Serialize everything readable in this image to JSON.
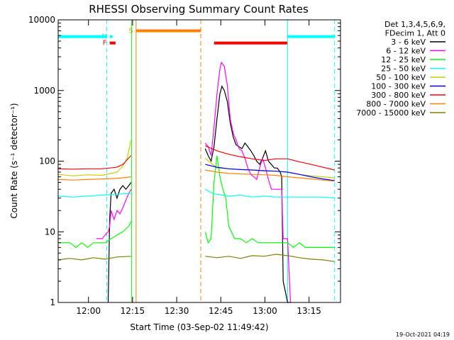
{
  "chart_data": {
    "type": "line",
    "title": "RHESSI Observing Summary Count Rates",
    "xlabel": "Start Time (03-Sep-02 11:49:42)",
    "ylabel": "Count Rate (s⁻¹ detector⁻¹)",
    "footer": "19-Oct-2021 04:19",
    "x_unit": "minutes since 11:49:42",
    "xlim": [
      0,
      96
    ],
    "ylim": [
      1,
      10000
    ],
    "y_scale": "log",
    "x_ticks": [
      {
        "x": 10.3,
        "label": "12:00"
      },
      {
        "x": 25.3,
        "label": "12:15"
      },
      {
        "x": 40.3,
        "label": "12:30"
      },
      {
        "x": 55.3,
        "label": "12:45"
      },
      {
        "x": 70.3,
        "label": "13:00"
      },
      {
        "x": 85.3,
        "label": "13:15"
      }
    ],
    "y_ticks": [
      {
        "y": 1,
        "label": "1"
      },
      {
        "y": 10,
        "label": "10"
      },
      {
        "y": 100,
        "label": "100"
      },
      {
        "y": 1000,
        "label": "1000"
      },
      {
        "y": 10000,
        "label": "10000"
      }
    ],
    "legend": {
      "placement": "right",
      "header": [
        "Det 1,3,4,5,6,9,",
        "FDecim 1, Att 0"
      ]
    },
    "series": [
      {
        "name": "3 - 6 keV",
        "color": "#000000",
        "points": [
          [
            17,
            1
          ],
          [
            17.5,
            15
          ],
          [
            18,
            35
          ],
          [
            19,
            40
          ],
          [
            20,
            30
          ],
          [
            21,
            40
          ],
          [
            22,
            45
          ],
          [
            23,
            40
          ],
          [
            24,
            45
          ],
          [
            24.8,
            50
          ],
          [
            50,
            150
          ],
          [
            51,
            120
          ],
          [
            52,
            100
          ],
          [
            53,
            160
          ],
          [
            54,
            400
          ],
          [
            55,
            900
          ],
          [
            55.7,
            1150
          ],
          [
            56.5,
            1000
          ],
          [
            57.5,
            700
          ],
          [
            58.5,
            350
          ],
          [
            59.5,
            220
          ],
          [
            60.5,
            170
          ],
          [
            61.5,
            160
          ],
          [
            62.5,
            150
          ],
          [
            63.5,
            180
          ],
          [
            64.5,
            160
          ],
          [
            65.5,
            140
          ],
          [
            66.5,
            120
          ],
          [
            67.5,
            100
          ],
          [
            68.5,
            90
          ],
          [
            69.5,
            110
          ],
          [
            70.5,
            140
          ],
          [
            71.5,
            100
          ],
          [
            72.5,
            90
          ],
          [
            73.5,
            80
          ],
          [
            74.5,
            80
          ],
          [
            75.5,
            70
          ],
          [
            76,
            60
          ],
          [
            76.5,
            2
          ],
          [
            78,
            1
          ],
          [
            79,
            1
          ]
        ]
      },
      {
        "name": "6 - 12 keV",
        "color": "#ff00ff",
        "points": [
          [
            13,
            8
          ],
          [
            14,
            8
          ],
          [
            15,
            8
          ],
          [
            16,
            9
          ],
          [
            17,
            10
          ],
          [
            17.5,
            12
          ],
          [
            18,
            20
          ],
          [
            19,
            15
          ],
          [
            20,
            20
          ],
          [
            21,
            18
          ],
          [
            22,
            22
          ],
          [
            23,
            28
          ],
          [
            24,
            35
          ],
          [
            24.8,
            40
          ],
          [
            50,
            180
          ],
          [
            51,
            160
          ],
          [
            52,
            120
          ],
          [
            53,
            300
          ],
          [
            54,
            900
          ],
          [
            55,
            2000
          ],
          [
            55.5,
            2500
          ],
          [
            56.5,
            2200
          ],
          [
            57.5,
            1200
          ],
          [
            58.5,
            400
          ],
          [
            59.5,
            250
          ],
          [
            60.5,
            200
          ],
          [
            61.5,
            150
          ],
          [
            62.5,
            140
          ],
          [
            63.5,
            110
          ],
          [
            64.5,
            80
          ],
          [
            65.5,
            65
          ],
          [
            66.5,
            60
          ],
          [
            67.5,
            55
          ],
          [
            68.5,
            80
          ],
          [
            69.5,
            110
          ],
          [
            70.5,
            80
          ],
          [
            71.5,
            55
          ],
          [
            72.5,
            40
          ],
          [
            73.5,
            40
          ],
          [
            74.5,
            40
          ],
          [
            75.5,
            40
          ],
          [
            76,
            40
          ],
          [
            76.5,
            8
          ],
          [
            77,
            8
          ],
          [
            78,
            8
          ],
          [
            79,
            1
          ]
        ]
      },
      {
        "name": "12 - 25 keV",
        "color": "#00ff00",
        "points": [
          [
            0,
            7
          ],
          [
            2,
            7
          ],
          [
            4,
            7
          ],
          [
            6,
            6
          ],
          [
            8,
            7
          ],
          [
            10,
            6
          ],
          [
            12,
            7
          ],
          [
            14,
            7
          ],
          [
            16,
            7
          ],
          [
            18,
            8
          ],
          [
            20,
            9
          ],
          [
            22,
            10
          ],
          [
            24,
            12
          ],
          [
            24.8,
            14
          ],
          [
            50,
            10
          ],
          [
            51,
            7
          ],
          [
            52,
            8
          ],
          [
            53,
            50
          ],
          [
            54,
            120
          ],
          [
            55,
            60
          ],
          [
            56,
            40
          ],
          [
            57,
            30
          ],
          [
            58,
            12
          ],
          [
            60,
            8
          ],
          [
            62,
            8
          ],
          [
            64,
            7
          ],
          [
            66,
            8
          ],
          [
            68,
            7
          ],
          [
            70,
            7
          ],
          [
            72,
            7
          ],
          [
            74,
            7
          ],
          [
            76,
            7
          ],
          [
            78,
            7
          ],
          [
            80,
            6
          ],
          [
            82,
            7
          ],
          [
            84,
            6
          ],
          [
            86,
            6
          ],
          [
            88,
            6
          ],
          [
            90,
            6
          ],
          [
            92,
            6
          ],
          [
            94,
            6
          ]
        ]
      },
      {
        "name": "25 - 50 keV",
        "color": "#00ffff",
        "points": [
          [
            0,
            32
          ],
          [
            5,
            31
          ],
          [
            10,
            32
          ],
          [
            15,
            33
          ],
          [
            20,
            34
          ],
          [
            24.8,
            35
          ],
          [
            50,
            40
          ],
          [
            52,
            36
          ],
          [
            54,
            34
          ],
          [
            56,
            33
          ],
          [
            58,
            32
          ],
          [
            62,
            33
          ],
          [
            66,
            31
          ],
          [
            70,
            32
          ],
          [
            74,
            31
          ],
          [
            78,
            31
          ],
          [
            82,
            31
          ],
          [
            86,
            31
          ],
          [
            90,
            31
          ],
          [
            94,
            30
          ]
        ]
      },
      {
        "name": "50 - 100 keV",
        "color": "#cccc00",
        "points": [
          [
            0,
            65
          ],
          [
            5,
            62
          ],
          [
            10,
            64
          ],
          [
            15,
            63
          ],
          [
            20,
            70
          ],
          [
            22,
            85
          ],
          [
            23.5,
            110
          ],
          [
            24.5,
            180
          ],
          [
            24.8,
            200
          ],
          [
            50,
            110
          ],
          [
            54,
            80
          ],
          [
            58,
            78
          ],
          [
            62,
            76
          ],
          [
            66,
            75
          ],
          [
            70,
            74
          ],
          [
            74,
            72
          ],
          [
            78,
            70
          ],
          [
            82,
            65
          ],
          [
            86,
            62
          ],
          [
            90,
            60
          ],
          [
            94,
            58
          ]
        ]
      },
      {
        "name": "100 - 300 keV",
        "color": "#0000ff",
        "points": [
          [
            50,
            90
          ],
          [
            54,
            82
          ],
          [
            58,
            78
          ],
          [
            62,
            76
          ],
          [
            66,
            75
          ],
          [
            70,
            73
          ],
          [
            74,
            72
          ],
          [
            78,
            70
          ],
          [
            82,
            65
          ],
          [
            86,
            60
          ],
          [
            90,
            56
          ],
          [
            94,
            53
          ]
        ]
      },
      {
        "name": "300 - 800 keV",
        "color": "#ff0000",
        "points": [
          [
            0,
            78
          ],
          [
            5,
            77
          ],
          [
            10,
            78
          ],
          [
            15,
            78
          ],
          [
            20,
            82
          ],
          [
            22,
            90
          ],
          [
            23.5,
            105
          ],
          [
            24.8,
            120
          ],
          [
            50,
            165
          ],
          [
            54,
            140
          ],
          [
            58,
            125
          ],
          [
            62,
            115
          ],
          [
            66,
            108
          ],
          [
            70,
            102
          ],
          [
            74,
            108
          ],
          [
            78,
            108
          ],
          [
            82,
            98
          ],
          [
            86,
            90
          ],
          [
            90,
            82
          ],
          [
            94,
            75
          ]
        ]
      },
      {
        "name": "800 - 7000 keV",
        "color": "#ff8000",
        "points": [
          [
            0,
            55
          ],
          [
            5,
            54
          ],
          [
            10,
            55
          ],
          [
            15,
            56
          ],
          [
            20,
            57
          ],
          [
            24.8,
            60
          ],
          [
            50,
            75
          ],
          [
            54,
            70
          ],
          [
            58,
            67
          ],
          [
            62,
            66
          ],
          [
            66,
            65
          ],
          [
            70,
            64
          ],
          [
            74,
            63
          ],
          [
            78,
            60
          ],
          [
            82,
            58
          ],
          [
            86,
            56
          ],
          [
            90,
            54
          ],
          [
            94,
            52
          ]
        ]
      },
      {
        "name": "7000 - 15000 keV",
        "color": "#808000",
        "points": [
          [
            0,
            4
          ],
          [
            4,
            4.2
          ],
          [
            8,
            4
          ],
          [
            12,
            4.3
          ],
          [
            16,
            4.1
          ],
          [
            20,
            4.4
          ],
          [
            24.8,
            4.5
          ],
          [
            50,
            4.5
          ],
          [
            54,
            4.3
          ],
          [
            58,
            4.5
          ],
          [
            62,
            4.2
          ],
          [
            66,
            4.6
          ],
          [
            70,
            4.5
          ],
          [
            74,
            4.8
          ],
          [
            78,
            4.6
          ],
          [
            82,
            4.3
          ],
          [
            86,
            4.1
          ],
          [
            90,
            4
          ],
          [
            94,
            3.8
          ]
        ]
      }
    ],
    "state_bars": [
      {
        "label": "",
        "color": "#00ffff",
        "x0": 0,
        "x1": 16.5,
        "y": 5800
      },
      {
        "label": "",
        "color": "#00ffff",
        "x0": 78,
        "x1": 94,
        "y": 5800
      },
      {
        "label": "N",
        "color": "#00ffff",
        "x0": 17.5,
        "x1": 18.5,
        "y": 5800
      },
      {
        "label": "F",
        "color": "#ff0000",
        "x0": 17.5,
        "x1": 19.5,
        "y": 4700
      },
      {
        "label": "S",
        "color": "#ff8000",
        "x0": 26.5,
        "x1": 48.5,
        "y": 7000
      },
      {
        "label": "",
        "color": "#ff0000",
        "x0": 53,
        "x1": 78,
        "y": 4700
      }
    ],
    "markers": [
      {
        "x": 0,
        "color": "#00ffff",
        "style": "solid"
      },
      {
        "x": 16.5,
        "color": "#00ffff",
        "style": "dashed"
      },
      {
        "x": 25,
        "color": "#00ff00",
        "style": "solid"
      },
      {
        "x": 26.5,
        "color": "#ff8000",
        "style": "solid"
      },
      {
        "x": 48.5,
        "color": "#ff8000",
        "style": "dashed"
      },
      {
        "x": 78,
        "color": "#00ffff",
        "style": "solid"
      },
      {
        "x": 94,
        "color": "#00ffff",
        "style": "dashed"
      }
    ]
  }
}
